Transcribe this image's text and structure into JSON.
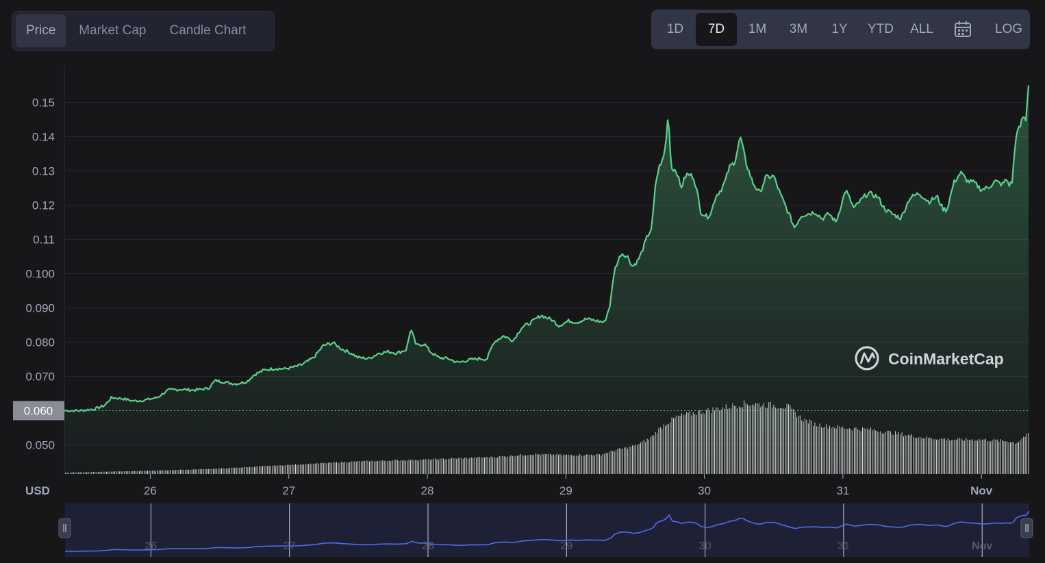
{
  "tabs": [
    {
      "label": "Price",
      "active": true
    },
    {
      "label": "Market Cap",
      "active": false
    },
    {
      "label": "Candle Chart",
      "active": false
    }
  ],
  "ranges": [
    {
      "label": "1D",
      "active": false
    },
    {
      "label": "7D",
      "active": true
    },
    {
      "label": "1M",
      "active": false
    },
    {
      "label": "3M",
      "active": false
    },
    {
      "label": "1Y",
      "active": false
    },
    {
      "label": "YTD",
      "active": false
    },
    {
      "label": "ALL",
      "active": false
    }
  ],
  "calendar_icon": "calendar-icon",
  "log_label": "LOG",
  "watermark": "CoinMarketCap",
  "currency_label": "USD",
  "colors": {
    "line": "#5ad18a",
    "volume": "#ffffff",
    "navigator_line": "#4e6cf0",
    "navigator_bg": "#1e2136"
  },
  "chart_data": {
    "type": "area",
    "y_ticks": [
      "0.050",
      "0.060",
      "0.070",
      "0.080",
      "0.090",
      "0.100",
      "0.11",
      "0.12",
      "0.13",
      "0.14",
      "0.15"
    ],
    "x_ticks": [
      "26",
      "27",
      "28",
      "29",
      "30",
      "31",
      "Nov"
    ],
    "current_price_label": "0.060",
    "ylim": [
      0.0415,
      0.1615
    ],
    "xlim": [
      25.38,
      32.34
    ],
    "grid": true,
    "price_series": [
      [
        25.38,
        0.06
      ],
      [
        25.5,
        0.06
      ],
      [
        25.6,
        0.0605
      ],
      [
        25.67,
        0.0615
      ],
      [
        25.72,
        0.0638
      ],
      [
        25.8,
        0.0635
      ],
      [
        25.88,
        0.0628
      ],
      [
        25.95,
        0.063
      ],
      [
        26.05,
        0.0638
      ],
      [
        26.13,
        0.066
      ],
      [
        26.22,
        0.0662
      ],
      [
        26.32,
        0.066
      ],
      [
        26.42,
        0.0665
      ],
      [
        26.47,
        0.0688
      ],
      [
        26.55,
        0.0682
      ],
      [
        26.62,
        0.0678
      ],
      [
        26.7,
        0.0685
      ],
      [
        26.75,
        0.0705
      ],
      [
        26.82,
        0.0718
      ],
      [
        26.9,
        0.0723
      ],
      [
        26.97,
        0.0722
      ],
      [
        27.05,
        0.0728
      ],
      [
        27.1,
        0.0735
      ],
      [
        27.18,
        0.0755
      ],
      [
        27.25,
        0.079
      ],
      [
        27.32,
        0.0798
      ],
      [
        27.38,
        0.078
      ],
      [
        27.45,
        0.0768
      ],
      [
        27.5,
        0.0755
      ],
      [
        27.58,
        0.0752
      ],
      [
        27.65,
        0.0768
      ],
      [
        27.72,
        0.0772
      ],
      [
        27.78,
        0.0768
      ],
      [
        27.85,
        0.0778
      ],
      [
        27.88,
        0.084
      ],
      [
        27.92,
        0.079
      ],
      [
        27.98,
        0.0795
      ],
      [
        28.02,
        0.0772
      ],
      [
        28.08,
        0.0755
      ],
      [
        28.15,
        0.0752
      ],
      [
        28.22,
        0.074
      ],
      [
        28.3,
        0.0748
      ],
      [
        28.38,
        0.0752
      ],
      [
        28.43,
        0.075
      ],
      [
        28.48,
        0.08
      ],
      [
        28.55,
        0.0818
      ],
      [
        28.62,
        0.0805
      ],
      [
        28.68,
        0.0842
      ],
      [
        28.75,
        0.0858
      ],
      [
        28.82,
        0.0878
      ],
      [
        28.9,
        0.0865
      ],
      [
        28.95,
        0.0848
      ],
      [
        29.02,
        0.0862
      ],
      [
        29.08,
        0.0858
      ],
      [
        29.15,
        0.0868
      ],
      [
        29.22,
        0.0862
      ],
      [
        29.28,
        0.0858
      ],
      [
        29.32,
        0.091
      ],
      [
        29.35,
        0.101
      ],
      [
        29.4,
        0.106
      ],
      [
        29.45,
        0.1048
      ],
      [
        29.48,
        0.102
      ],
      [
        29.52,
        0.1038
      ],
      [
        29.55,
        0.1065
      ],
      [
        29.58,
        0.11
      ],
      [
        29.62,
        0.1135
      ],
      [
        29.65,
        0.127
      ],
      [
        29.68,
        0.132
      ],
      [
        29.7,
        0.133
      ],
      [
        29.72,
        0.1375
      ],
      [
        29.74,
        0.147
      ],
      [
        29.76,
        0.131
      ],
      [
        29.8,
        0.13
      ],
      [
        29.83,
        0.125
      ],
      [
        29.87,
        0.129
      ],
      [
        29.92,
        0.1285
      ],
      [
        29.95,
        0.1235
      ],
      [
        29.97,
        0.1182
      ],
      [
        30.02,
        0.1165
      ],
      [
        30.05,
        0.118
      ],
      [
        30.08,
        0.1225
      ],
      [
        30.12,
        0.1245
      ],
      [
        30.15,
        0.127
      ],
      [
        30.18,
        0.131
      ],
      [
        30.22,
        0.1328
      ],
      [
        30.26,
        0.14
      ],
      [
        30.3,
        0.1325
      ],
      [
        30.32,
        0.13
      ],
      [
        30.35,
        0.1265
      ],
      [
        30.4,
        0.1235
      ],
      [
        30.44,
        0.128
      ],
      [
        30.5,
        0.1285
      ],
      [
        30.55,
        0.123
      ],
      [
        30.58,
        0.1202
      ],
      [
        30.62,
        0.1165
      ],
      [
        30.65,
        0.1135
      ],
      [
        30.7,
        0.117
      ],
      [
        30.75,
        0.1175
      ],
      [
        30.8,
        0.118
      ],
      [
        30.85,
        0.116
      ],
      [
        30.9,
        0.1175
      ],
      [
        30.95,
        0.115
      ],
      [
        31.02,
        0.1245
      ],
      [
        31.08,
        0.119
      ],
      [
        31.12,
        0.121
      ],
      [
        31.18,
        0.1235
      ],
      [
        31.25,
        0.1225
      ],
      [
        31.3,
        0.119
      ],
      [
        31.35,
        0.1175
      ],
      [
        31.42,
        0.1162
      ],
      [
        31.48,
        0.122
      ],
      [
        31.55,
        0.1235
      ],
      [
        31.62,
        0.121
      ],
      [
        31.68,
        0.1225
      ],
      [
        31.72,
        0.119
      ],
      [
        31.75,
        0.1185
      ],
      [
        31.8,
        0.1265
      ],
      [
        31.85,
        0.1295
      ],
      [
        31.9,
        0.127
      ],
      [
        31.95,
        0.1265
      ],
      [
        32.0,
        0.1245
      ],
      [
        32.05,
        0.1252
      ],
      [
        32.1,
        0.127
      ],
      [
        32.15,
        0.126
      ],
      [
        32.18,
        0.1275
      ],
      [
        32.2,
        0.126
      ],
      [
        32.22,
        0.1265
      ],
      [
        32.25,
        0.1405
      ],
      [
        32.28,
        0.143
      ],
      [
        32.3,
        0.1458
      ],
      [
        32.32,
        0.145
      ],
      [
        32.34,
        0.155
      ]
    ],
    "volume_series": [
      [
        25.38,
        0.8
      ],
      [
        25.8,
        1.6
      ],
      [
        26.0,
        1.9
      ],
      [
        26.5,
        3.2
      ],
      [
        27.0,
        5.4
      ],
      [
        27.5,
        7.5
      ],
      [
        28.0,
        8.6
      ],
      [
        28.5,
        10.2
      ],
      [
        28.75,
        11.8
      ],
      [
        29.0,
        11.3
      ],
      [
        29.25,
        11.5
      ],
      [
        29.35,
        14.0
      ],
      [
        29.5,
        17.0
      ],
      [
        29.6,
        21.0
      ],
      [
        29.7,
        29.0
      ],
      [
        29.8,
        34.0
      ],
      [
        29.9,
        36.0
      ],
      [
        30.0,
        37.5
      ],
      [
        30.1,
        39.0
      ],
      [
        30.2,
        40.5
      ],
      [
        30.25,
        41.5
      ],
      [
        30.3,
        42.0
      ],
      [
        30.4,
        41.5
      ],
      [
        30.5,
        41.0
      ],
      [
        30.6,
        40.0
      ],
      [
        30.7,
        33.0
      ],
      [
        30.8,
        29.5
      ],
      [
        31.0,
        27.5
      ],
      [
        31.2,
        26.5
      ],
      [
        31.4,
        24.0
      ],
      [
        31.6,
        21.5
      ],
      [
        31.8,
        20.5
      ],
      [
        32.0,
        20.5
      ],
      [
        32.2,
        19.5
      ],
      [
        32.25,
        18.5
      ],
      [
        32.3,
        22.0
      ],
      [
        32.34,
        23.5
      ]
    ],
    "volume_max": 60
  }
}
